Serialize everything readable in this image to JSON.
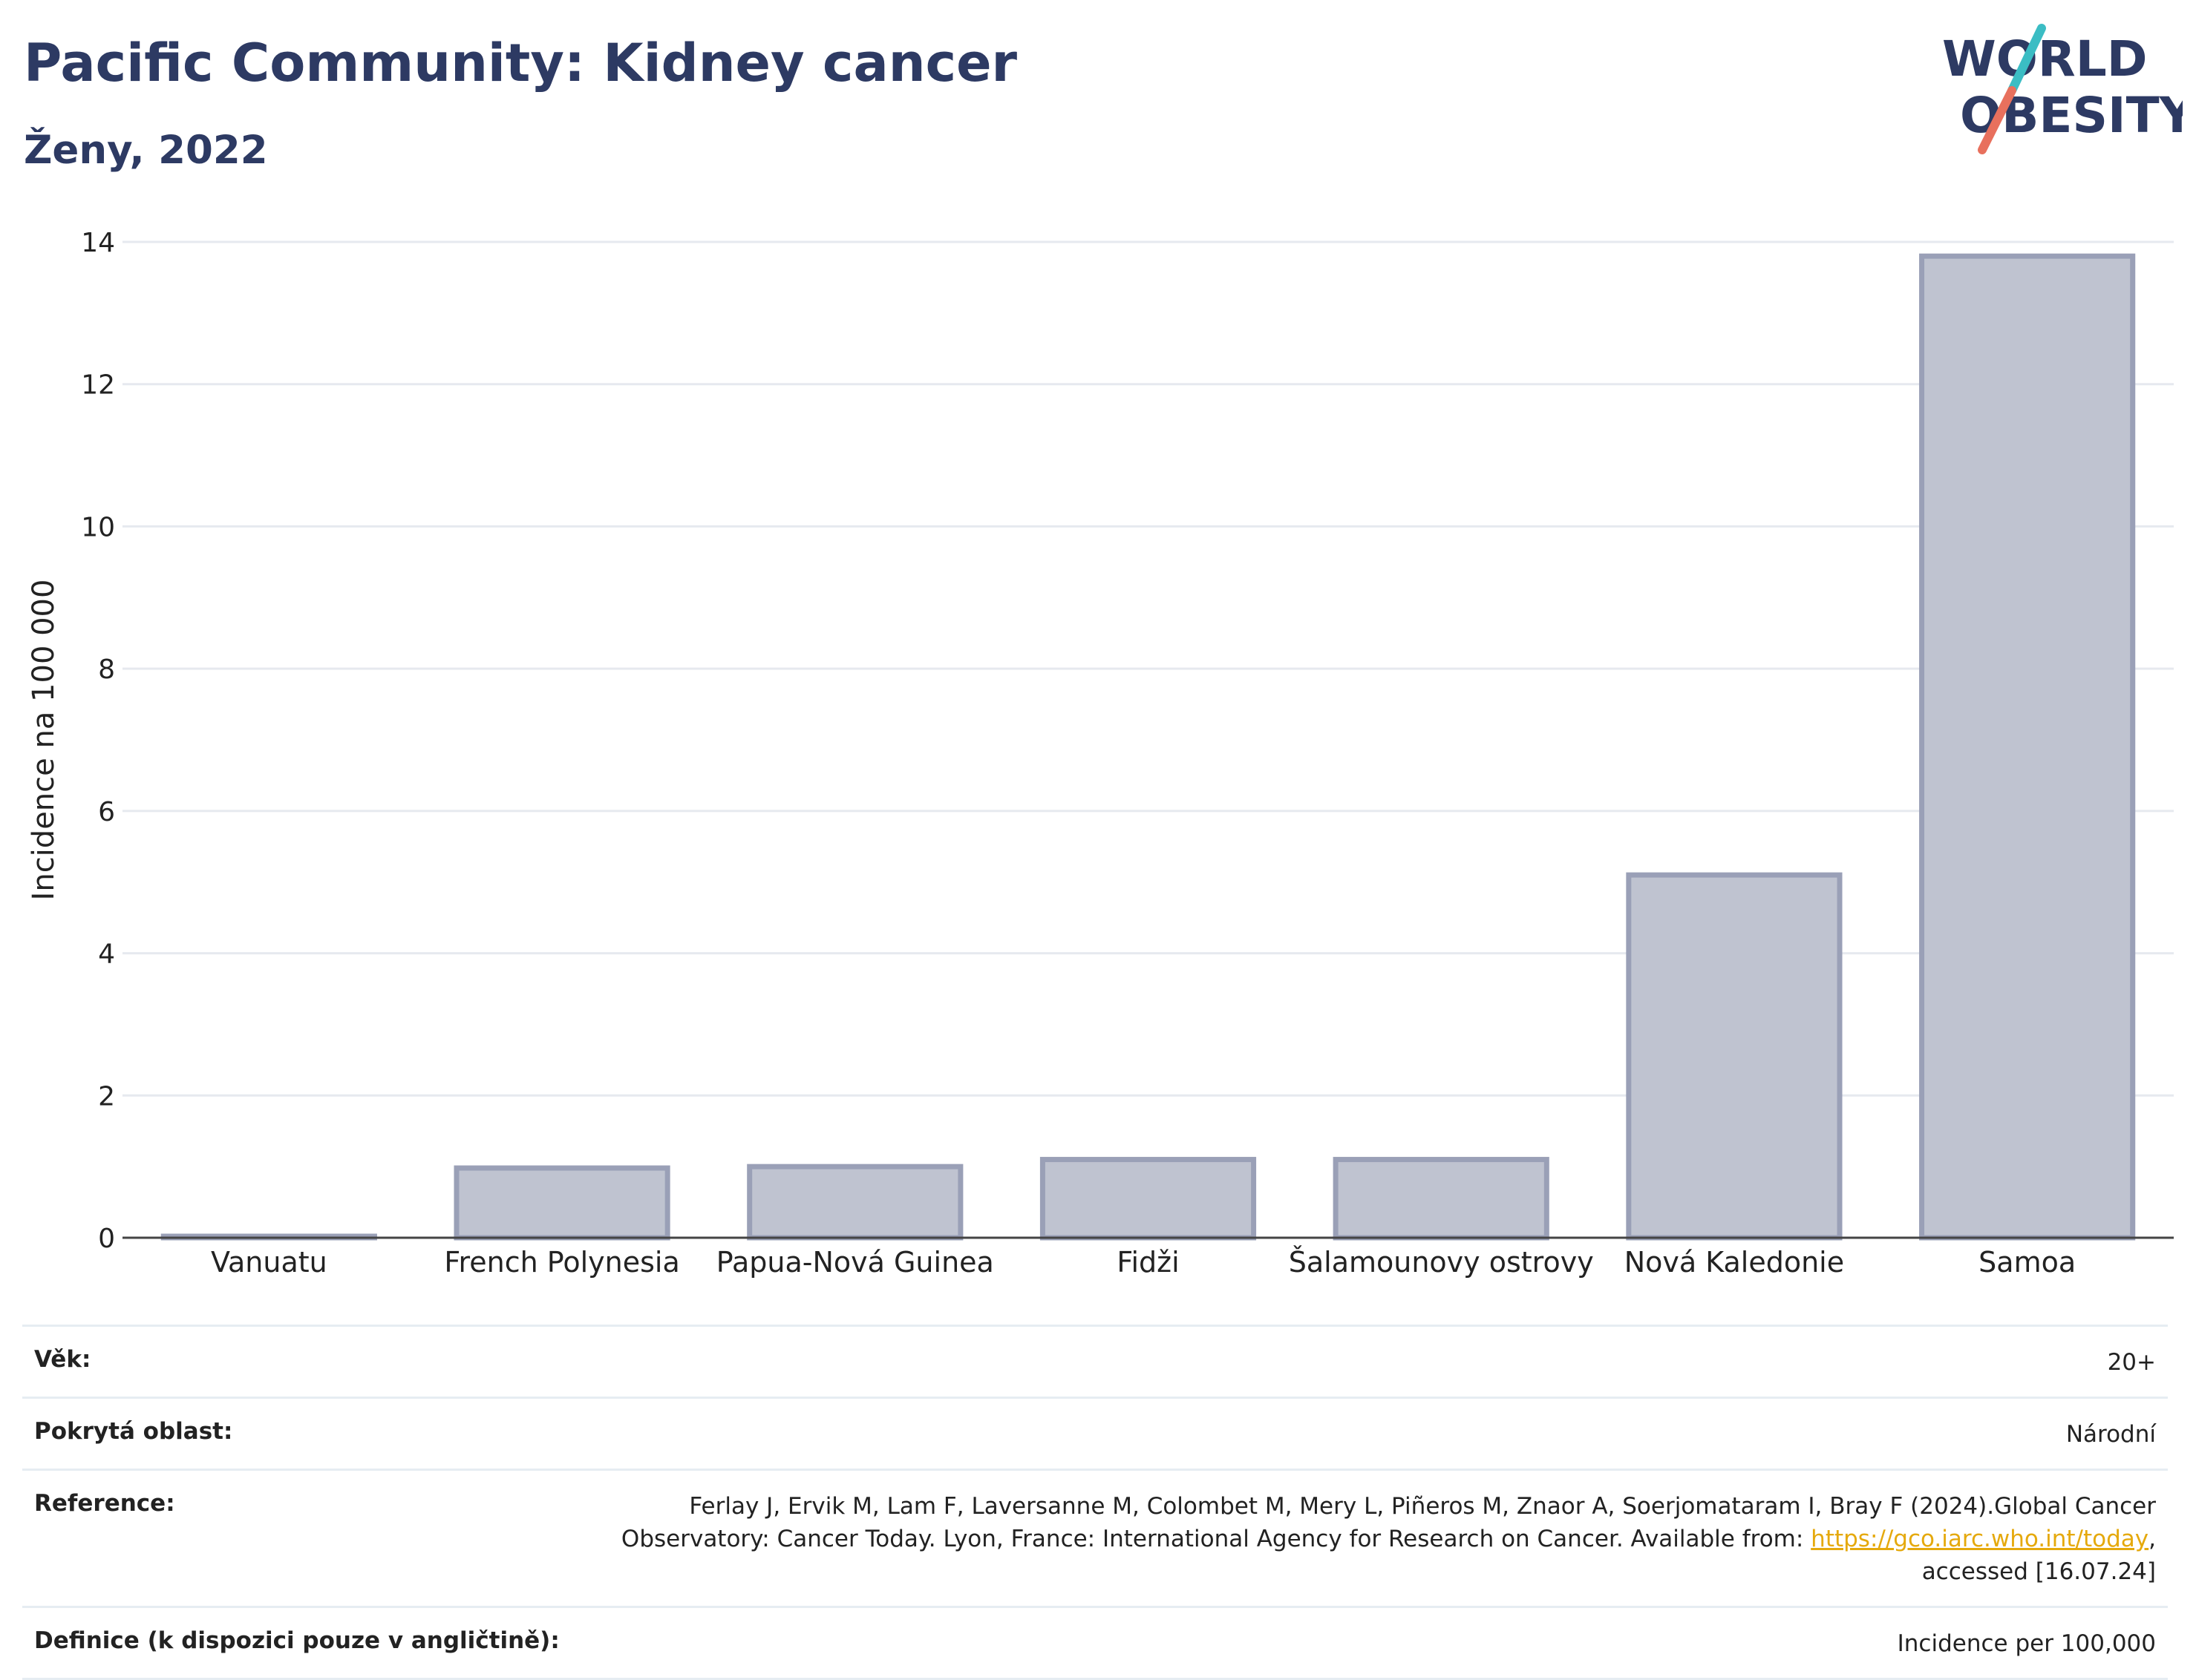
{
  "header": {
    "title": "Pacific Community: Kidney cancer",
    "subtitle": "Ženy, 2022"
  },
  "logo": {
    "line1": "WORLD",
    "line2": "OBESITY",
    "colors": {
      "text": "#2d3a63",
      "slash_top": "#3bbdc4",
      "slash_bottom": "#e8705d"
    }
  },
  "chart_data": {
    "type": "bar",
    "categories": [
      "Vanuatu",
      "French Polynesia",
      "Papua-Nová Guinea",
      "Fidži",
      "Šalamounovy ostrovy",
      "Nová Kaledonie",
      "Samoa"
    ],
    "values": [
      0.02,
      0.98,
      1.0,
      1.1,
      1.1,
      5.1,
      13.8
    ],
    "ylabel": "Incidence na 100 000",
    "xlabel": "",
    "ylim": [
      0,
      14
    ],
    "yticks": [
      0,
      2,
      4,
      6,
      8,
      10,
      12,
      14
    ],
    "grid": true,
    "bar_color": "#bfc3d0",
    "bar_edge_color": "#9aa0b7"
  },
  "meta": {
    "age_label": "Věk:",
    "age_value": "20+",
    "coverage_label": "Pokrytá oblast:",
    "coverage_value": "Národní",
    "reference_label": "Reference:",
    "reference_text_1": "Ferlay J, Ervik M, Lam F, Laversanne M, Colombet M, Mery L, Piñeros M, Znaor A, Soerjomataram I, Bray F (2024).Global Cancer Observatory: Cancer Today. Lyon, France: International Agency for Research on Cancer. Available from: ",
    "reference_link": "https://gco.iarc.who.int/today",
    "reference_text_2": ", accessed [16.07.24]",
    "definition_label": "Definice (k dispozici pouze v angličtině):",
    "definition_value": "Incidence per 100,000"
  }
}
